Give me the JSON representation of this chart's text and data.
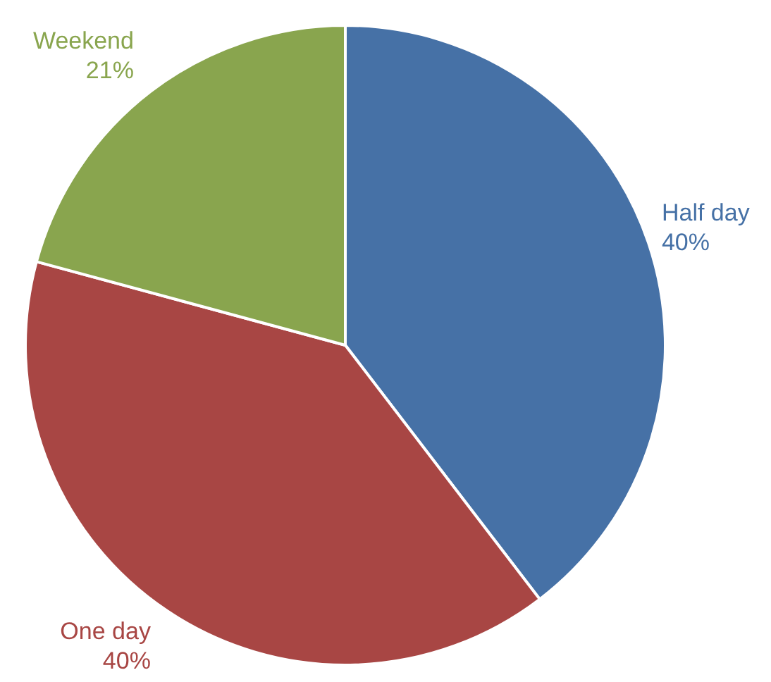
{
  "chart_data": {
    "type": "pie",
    "categories": [
      "Half day",
      "One day",
      "Weekend"
    ],
    "values": [
      40,
      40,
      21
    ],
    "value_labels": [
      "40%",
      "40%",
      "21%"
    ],
    "colors": [
      "#4671a6",
      "#a84644",
      "#89a54e"
    ],
    "legend": false
  }
}
